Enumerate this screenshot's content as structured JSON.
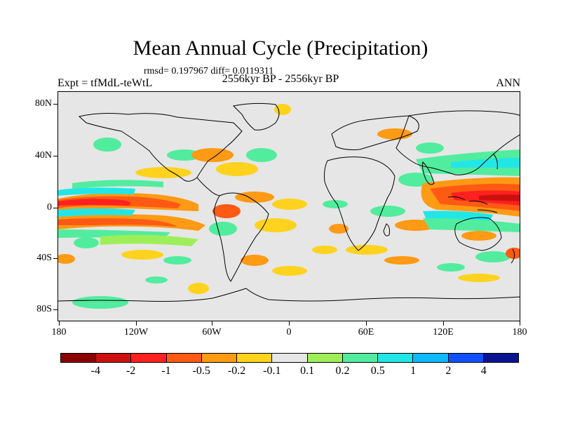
{
  "header": {
    "title": "Mean Annual Cycle (Precipitation)",
    "stats": "rmsd= 0.197967 diff= 0.0119311",
    "experiment": "Expt = tfMdL-teWtL",
    "period": "2556kyr BP - 2556kyr BP",
    "season": "ANN"
  },
  "map": {
    "background_color": "#e6e6e6",
    "coastline_color": "#000000",
    "lat_labels": [
      "80N",
      "40N",
      "0",
      "40S",
      "80S"
    ],
    "lon_labels": [
      "180",
      "120W",
      "60W",
      "0",
      "60E",
      "120E",
      "180"
    ]
  },
  "colorbar": {
    "colors": [
      "#8b0000",
      "#cc1010",
      "#ff2020",
      "#ff5a14",
      "#ff9a14",
      "#ffd21e",
      "#e6e6e6",
      "#9eee5a",
      "#52ec9e",
      "#22e6e6",
      "#10b8ff",
      "#1050ff",
      "#0a1490"
    ],
    "labels": [
      "-4",
      "-2",
      "-1",
      "-0.5",
      "-0.2",
      "-0.1",
      "0.1",
      "0.2",
      "0.5",
      "1",
      "2",
      "4"
    ]
  }
}
